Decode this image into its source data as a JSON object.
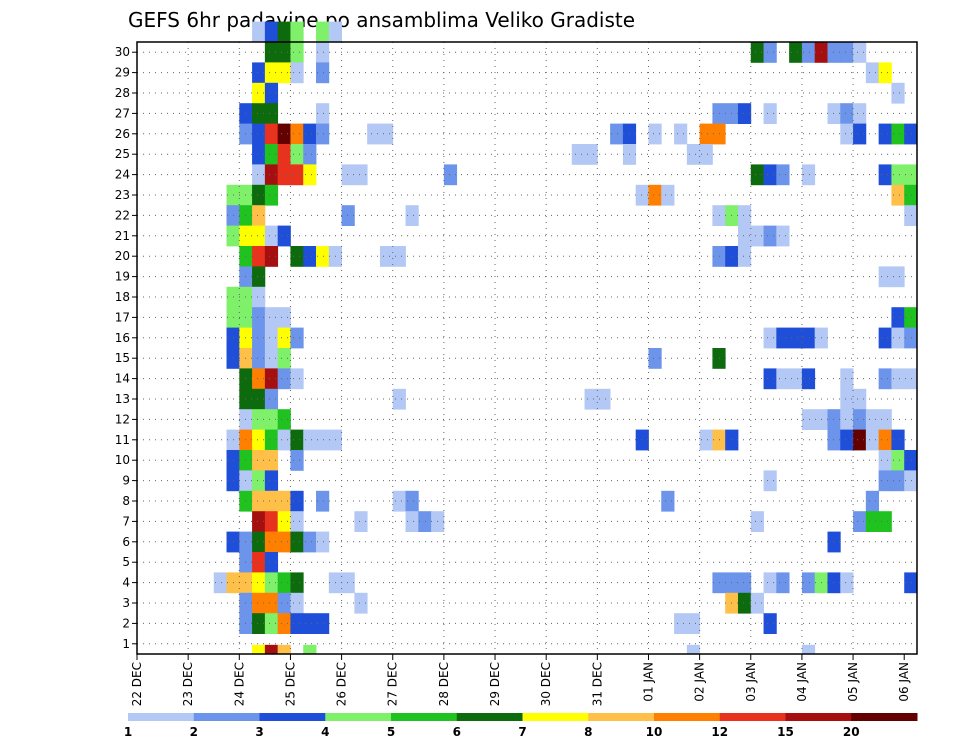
{
  "chart_data": {
    "type": "heatmap",
    "title": "GEFS 6hr padavine po ansamblima Veliko Gradiste",
    "y_ticks": [
      "1",
      "2",
      "3",
      "4",
      "5",
      "6",
      "7",
      "8",
      "9",
      "10",
      "11",
      "12",
      "13",
      "14",
      "15",
      "16",
      "17",
      "18",
      "19",
      "20",
      "21",
      "22",
      "23",
      "24",
      "25",
      "26",
      "27",
      "28",
      "29",
      "30"
    ],
    "x_ticks": [
      "22 DEC",
      "23 DEC",
      "24 DEC",
      "25 DEC",
      "26 DEC",
      "27 DEC",
      "28 DEC",
      "29 DEC",
      "30 DEC",
      "31 DEC",
      "01 JAN",
      "02 JAN",
      "03 JAN",
      "04 JAN",
      "05 JAN",
      "06 JAN"
    ],
    "x_range": [
      "22 DEC",
      "06 JAN"
    ],
    "y_range": [
      0,
      30
    ],
    "grid": true,
    "colorbar": {
      "levels": [
        "1",
        "2",
        "3",
        "4",
        "5",
        "6",
        "7",
        "8",
        "10",
        "12",
        "15",
        "20"
      ],
      "colors": [
        "#b4c8f5",
        "#6b94ea",
        "#1f4fd8",
        "#7ef06a",
        "#1fc21f",
        "#0d6b0d",
        "#ffff00",
        "#ffc04a",
        "#ff8000",
        "#e8321e",
        "#a50f0f",
        "#640000"
      ]
    },
    "cells": [
      [
        30,
        9,
        1
      ],
      [
        30,
        10,
        3
      ],
      [
        30,
        11,
        6
      ],
      [
        30,
        12,
        4
      ],
      [
        30,
        14,
        4
      ],
      [
        30,
        15,
        1
      ],
      [
        29,
        10,
        6
      ],
      [
        29,
        11,
        6
      ],
      [
        29,
        12,
        4
      ],
      [
        29,
        14,
        1
      ],
      [
        29,
        48,
        6
      ],
      [
        29,
        49,
        2
      ],
      [
        29,
        51,
        6
      ],
      [
        29,
        52,
        2
      ],
      [
        29,
        53,
        11
      ],
      [
        29,
        54,
        2
      ],
      [
        29,
        55,
        2
      ],
      [
        29,
        56,
        1
      ],
      [
        28,
        9,
        3
      ],
      [
        28,
        10,
        7
      ],
      [
        28,
        11,
        7
      ],
      [
        28,
        12,
        1
      ],
      [
        28,
        14,
        2
      ],
      [
        28,
        57,
        1
      ],
      [
        28,
        58,
        7
      ],
      [
        27,
        9,
        7
      ],
      [
        27,
        10,
        3
      ],
      [
        27,
        59,
        1
      ],
      [
        26,
        8,
        3
      ],
      [
        26,
        9,
        6
      ],
      [
        26,
        10,
        6
      ],
      [
        26,
        14,
        1
      ],
      [
        26,
        45,
        2
      ],
      [
        26,
        46,
        2
      ],
      [
        26,
        47,
        3
      ],
      [
        26,
        49,
        1
      ],
      [
        26,
        54,
        1
      ],
      [
        26,
        55,
        2
      ],
      [
        26,
        56,
        1
      ],
      [
        25,
        8,
        2
      ],
      [
        25,
        9,
        3
      ],
      [
        25,
        10,
        10
      ],
      [
        25,
        11,
        12
      ],
      [
        25,
        12,
        9
      ],
      [
        25,
        13,
        3
      ],
      [
        25,
        14,
        2
      ],
      [
        25,
        18,
        1
      ],
      [
        25,
        19,
        1
      ],
      [
        25,
        37,
        2
      ],
      [
        25,
        38,
        3
      ],
      [
        25,
        40,
        1
      ],
      [
        25,
        42,
        1
      ],
      [
        25,
        44,
        9
      ],
      [
        25,
        45,
        9
      ],
      [
        25,
        55,
        1
      ],
      [
        25,
        56,
        3
      ],
      [
        25,
        58,
        3
      ],
      [
        25,
        59,
        5
      ],
      [
        25,
        60,
        3
      ],
      [
        24,
        9,
        3
      ],
      [
        24,
        10,
        5
      ],
      [
        24,
        11,
        10
      ],
      [
        24,
        12,
        4
      ],
      [
        24,
        13,
        2
      ],
      [
        24,
        34,
        1
      ],
      [
        24,
        35,
        1
      ],
      [
        24,
        38,
        1
      ],
      [
        24,
        43,
        1
      ],
      [
        24,
        44,
        1
      ],
      [
        23,
        9,
        1
      ],
      [
        23,
        10,
        11
      ],
      [
        23,
        11,
        10
      ],
      [
        23,
        12,
        10
      ],
      [
        23,
        13,
        7
      ],
      [
        23,
        16,
        1
      ],
      [
        23,
        17,
        1
      ],
      [
        23,
        24,
        2
      ],
      [
        23,
        48,
        6
      ],
      [
        23,
        49,
        3
      ],
      [
        23,
        50,
        2
      ],
      [
        23,
        52,
        1
      ],
      [
        23,
        58,
        3
      ],
      [
        23,
        59,
        4
      ],
      [
        23,
        60,
        4
      ],
      [
        22,
        7,
        4
      ],
      [
        22,
        8,
        4
      ],
      [
        22,
        9,
        6
      ],
      [
        22,
        10,
        5
      ],
      [
        22,
        39,
        1
      ],
      [
        22,
        40,
        9
      ],
      [
        22,
        41,
        1
      ],
      [
        22,
        59,
        8
      ],
      [
        22,
        60,
        5
      ],
      [
        21,
        7,
        2
      ],
      [
        21,
        8,
        5
      ],
      [
        21,
        9,
        8
      ],
      [
        21,
        16,
        2
      ],
      [
        21,
        21,
        1
      ],
      [
        21,
        45,
        1
      ],
      [
        21,
        46,
        4
      ],
      [
        21,
        47,
        1
      ],
      [
        21,
        60,
        1
      ],
      [
        20,
        7,
        4
      ],
      [
        20,
        8,
        7
      ],
      [
        20,
        9,
        7
      ],
      [
        20,
        10,
        1
      ],
      [
        20,
        11,
        3
      ],
      [
        20,
        47,
        1
      ],
      [
        20,
        48,
        1
      ],
      [
        20,
        49,
        2
      ],
      [
        20,
        50,
        1
      ],
      [
        19,
        8,
        5
      ],
      [
        19,
        9,
        10
      ],
      [
        19,
        10,
        11
      ],
      [
        19,
        12,
        6
      ],
      [
        19,
        13,
        3
      ],
      [
        19,
        14,
        7
      ],
      [
        19,
        15,
        1
      ],
      [
        19,
        19,
        1
      ],
      [
        19,
        20,
        1
      ],
      [
        19,
        45,
        2
      ],
      [
        19,
        46,
        3
      ],
      [
        19,
        47,
        1
      ],
      [
        18,
        8,
        2
      ],
      [
        18,
        9,
        6
      ],
      [
        18,
        58,
        1
      ],
      [
        18,
        59,
        1
      ],
      [
        17,
        7,
        4
      ],
      [
        17,
        8,
        4
      ],
      [
        17,
        9,
        1
      ],
      [
        16,
        7,
        4
      ],
      [
        16,
        8,
        4
      ],
      [
        16,
        9,
        2
      ],
      [
        16,
        10,
        1
      ],
      [
        16,
        11,
        1
      ],
      [
        16,
        59,
        3
      ],
      [
        16,
        60,
        5
      ],
      [
        15,
        7,
        3
      ],
      [
        15,
        8,
        7
      ],
      [
        15,
        9,
        2
      ],
      [
        15,
        10,
        1
      ],
      [
        15,
        11,
        7
      ],
      [
        15,
        12,
        2
      ],
      [
        15,
        49,
        1
      ],
      [
        15,
        50,
        3
      ],
      [
        15,
        51,
        3
      ],
      [
        15,
        52,
        3
      ],
      [
        15,
        53,
        1
      ],
      [
        15,
        58,
        3
      ],
      [
        15,
        59,
        1
      ],
      [
        15,
        60,
        2
      ],
      [
        14,
        7,
        3
      ],
      [
        14,
        8,
        8
      ],
      [
        14,
        9,
        2
      ],
      [
        14,
        10,
        1
      ],
      [
        14,
        11,
        4
      ],
      [
        14,
        40,
        2
      ],
      [
        14,
        45,
        6
      ],
      [
        13,
        8,
        6
      ],
      [
        13,
        9,
        9
      ],
      [
        13,
        10,
        11
      ],
      [
        13,
        11,
        2
      ],
      [
        13,
        12,
        1
      ],
      [
        13,
        49,
        3
      ],
      [
        13,
        50,
        1
      ],
      [
        13,
        51,
        1
      ],
      [
        13,
        52,
        3
      ],
      [
        13,
        55,
        1
      ],
      [
        13,
        58,
        2
      ],
      [
        13,
        59,
        1
      ],
      [
        13,
        60,
        1
      ],
      [
        12,
        8,
        6
      ],
      [
        12,
        9,
        6
      ],
      [
        12,
        10,
        2
      ],
      [
        12,
        20,
        1
      ],
      [
        12,
        35,
        1
      ],
      [
        12,
        36,
        1
      ],
      [
        12,
        55,
        1
      ],
      [
        12,
        56,
        1
      ],
      [
        11,
        8,
        1
      ],
      [
        11,
        9,
        4
      ],
      [
        11,
        10,
        4
      ],
      [
        11,
        11,
        5
      ],
      [
        11,
        52,
        1
      ],
      [
        11,
        53,
        1
      ],
      [
        11,
        54,
        2
      ],
      [
        11,
        55,
        1
      ],
      [
        11,
        56,
        2
      ],
      [
        11,
        57,
        1
      ],
      [
        11,
        58,
        1
      ],
      [
        10,
        7,
        1
      ],
      [
        10,
        8,
        9
      ],
      [
        10,
        9,
        7
      ],
      [
        10,
        10,
        5
      ],
      [
        10,
        11,
        1
      ],
      [
        10,
        12,
        6
      ],
      [
        10,
        13,
        1
      ],
      [
        10,
        14,
        1
      ],
      [
        10,
        15,
        1
      ],
      [
        10,
        39,
        3
      ],
      [
        10,
        44,
        1
      ],
      [
        10,
        45,
        8
      ],
      [
        10,
        46,
        3
      ],
      [
        10,
        54,
        2
      ],
      [
        10,
        55,
        3
      ],
      [
        10,
        56,
        12
      ],
      [
        10,
        57,
        1
      ],
      [
        10,
        58,
        9
      ],
      [
        10,
        59,
        3
      ],
      [
        9,
        7,
        3
      ],
      [
        9,
        8,
        5
      ],
      [
        9,
        9,
        8
      ],
      [
        9,
        10,
        8
      ],
      [
        9,
        12,
        2
      ],
      [
        9,
        58,
        1
      ],
      [
        9,
        59,
        4
      ],
      [
        9,
        60,
        3
      ],
      [
        8,
        7,
        3
      ],
      [
        8,
        8,
        1
      ],
      [
        8,
        9,
        4
      ],
      [
        8,
        10,
        3
      ],
      [
        8,
        49,
        1
      ],
      [
        8,
        58,
        2
      ],
      [
        8,
        59,
        2
      ],
      [
        8,
        60,
        1
      ],
      [
        7,
        8,
        5
      ],
      [
        7,
        9,
        8
      ],
      [
        7,
        10,
        8
      ],
      [
        7,
        11,
        8
      ],
      [
        7,
        12,
        3
      ],
      [
        7,
        14,
        2
      ],
      [
        7,
        20,
        1
      ],
      [
        7,
        21,
        2
      ],
      [
        7,
        41,
        2
      ],
      [
        7,
        57,
        2
      ],
      [
        6,
        9,
        11
      ],
      [
        6,
        10,
        10
      ],
      [
        6,
        11,
        7
      ],
      [
        6,
        12,
        1
      ],
      [
        6,
        17,
        1
      ],
      [
        6,
        21,
        1
      ],
      [
        6,
        22,
        2
      ],
      [
        6,
        23,
        1
      ],
      [
        6,
        48,
        1
      ],
      [
        6,
        56,
        2
      ],
      [
        6,
        57,
        5
      ],
      [
        6,
        58,
        5
      ],
      [
        5,
        7,
        3
      ],
      [
        5,
        8,
        2
      ],
      [
        5,
        9,
        6
      ],
      [
        5,
        10,
        9
      ],
      [
        5,
        11,
        9
      ],
      [
        5,
        12,
        6
      ],
      [
        5,
        13,
        2
      ],
      [
        5,
        14,
        1
      ],
      [
        5,
        54,
        3
      ],
      [
        4,
        8,
        2
      ],
      [
        4,
        9,
        10
      ],
      [
        4,
        10,
        3
      ],
      [
        3,
        6,
        1
      ],
      [
        3,
        7,
        8
      ],
      [
        3,
        8,
        8
      ],
      [
        3,
        9,
        7
      ],
      [
        3,
        10,
        4
      ],
      [
        3,
        11,
        5
      ],
      [
        3,
        12,
        6
      ],
      [
        3,
        15,
        1
      ],
      [
        3,
        16,
        1
      ],
      [
        3,
        45,
        2
      ],
      [
        3,
        46,
        2
      ],
      [
        3,
        47,
        2
      ],
      [
        3,
        49,
        1
      ],
      [
        3,
        50,
        2
      ],
      [
        3,
        52,
        2
      ],
      [
        3,
        53,
        4
      ],
      [
        3,
        54,
        3
      ],
      [
        3,
        55,
        1
      ],
      [
        3,
        60,
        3
      ],
      [
        2,
        8,
        2
      ],
      [
        2,
        9,
        9
      ],
      [
        2,
        10,
        9
      ],
      [
        2,
        11,
        2
      ],
      [
        2,
        12,
        1
      ],
      [
        2,
        17,
        1
      ],
      [
        2,
        46,
        8
      ],
      [
        2,
        47,
        6
      ],
      [
        2,
        48,
        1
      ],
      [
        1,
        8,
        2
      ],
      [
        1,
        9,
        6
      ],
      [
        1,
        10,
        4
      ],
      [
        1,
        11,
        9
      ],
      [
        1,
        12,
        3
      ],
      [
        1,
        13,
        3
      ],
      [
        1,
        14,
        3
      ],
      [
        1,
        42,
        1
      ],
      [
        1,
        43,
        1
      ],
      [
        1,
        49,
        3
      ],
      [
        0,
        9,
        7
      ],
      [
        0,
        10,
        11
      ],
      [
        0,
        11,
        8
      ],
      [
        0,
        13,
        4
      ],
      [
        0,
        43,
        1
      ],
      [
        0,
        52,
        1
      ]
    ]
  }
}
